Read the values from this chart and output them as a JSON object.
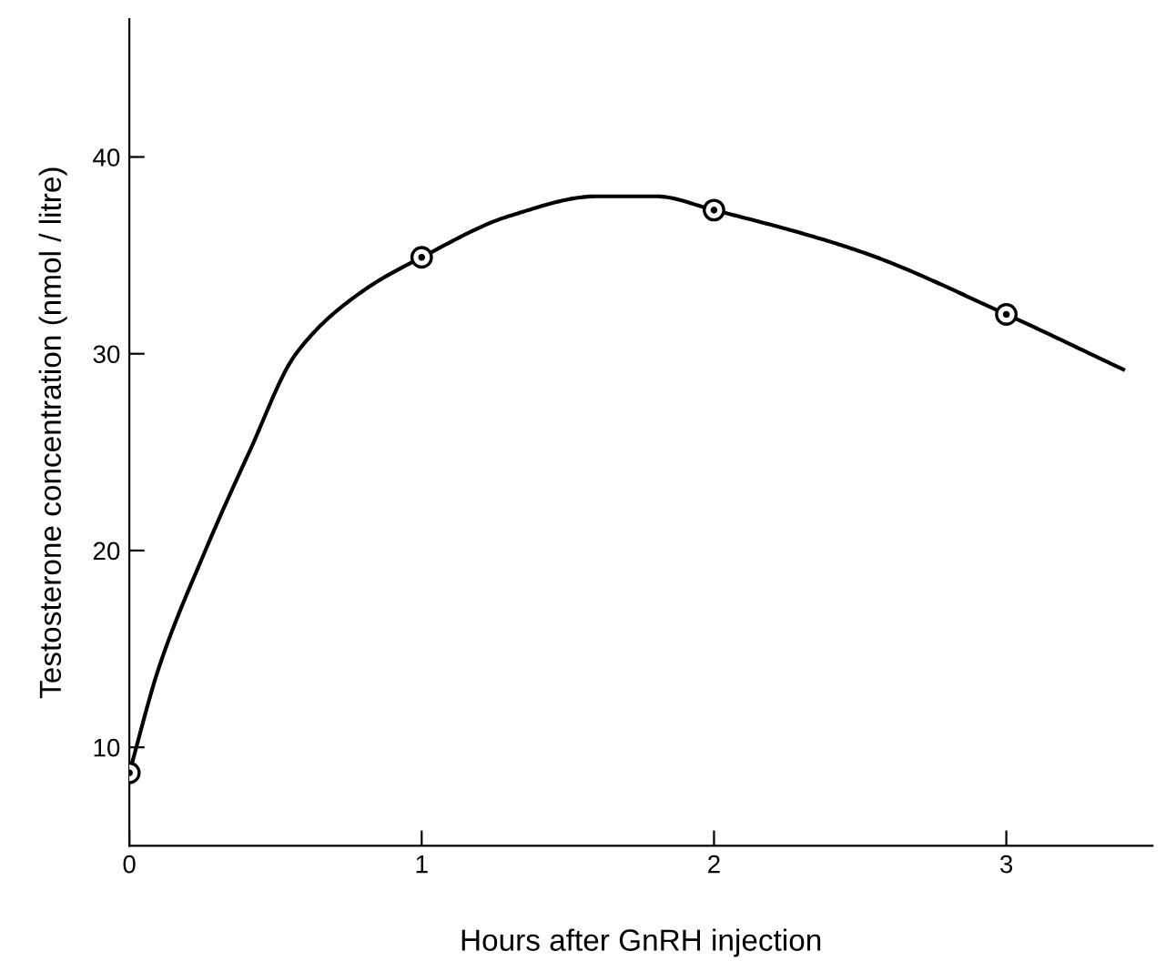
{
  "chart_data": {
    "type": "line",
    "xlabel": "Hours after GnRH injection",
    "ylabel": "Testosterone concentration (nmol / litre)",
    "series": [
      {
        "type": "scatter",
        "color": "#000000",
        "marker": "circle",
        "x": [
          0,
          1,
          2,
          3
        ],
        "values": [
          8.7,
          34.9,
          37.3,
          32.0
        ]
      },
      {
        "color": "#000000",
        "marker": "none",
        "line_style": "solid",
        "x": [
          0,
          0.1,
          0.26,
          0.41,
          0.57,
          0.8,
          1,
          1.3,
          1.6,
          1.8,
          2,
          2.5,
          3,
          3.4
        ],
        "values": [
          8.7,
          14.0,
          20,
          25,
          30,
          33.2,
          34.9,
          37.0,
          38.0,
          38.0,
          37.3,
          35.2,
          32.0,
          29.2
        ]
      }
    ],
    "xlim": [
      0,
      3.5
    ],
    "ylim": [
      5,
      47
    ],
    "xticks": [
      0,
      1,
      2,
      3
    ],
    "yticks": [
      10,
      20,
      30,
      40
    ],
    "grid": false,
    "legend": false
  }
}
